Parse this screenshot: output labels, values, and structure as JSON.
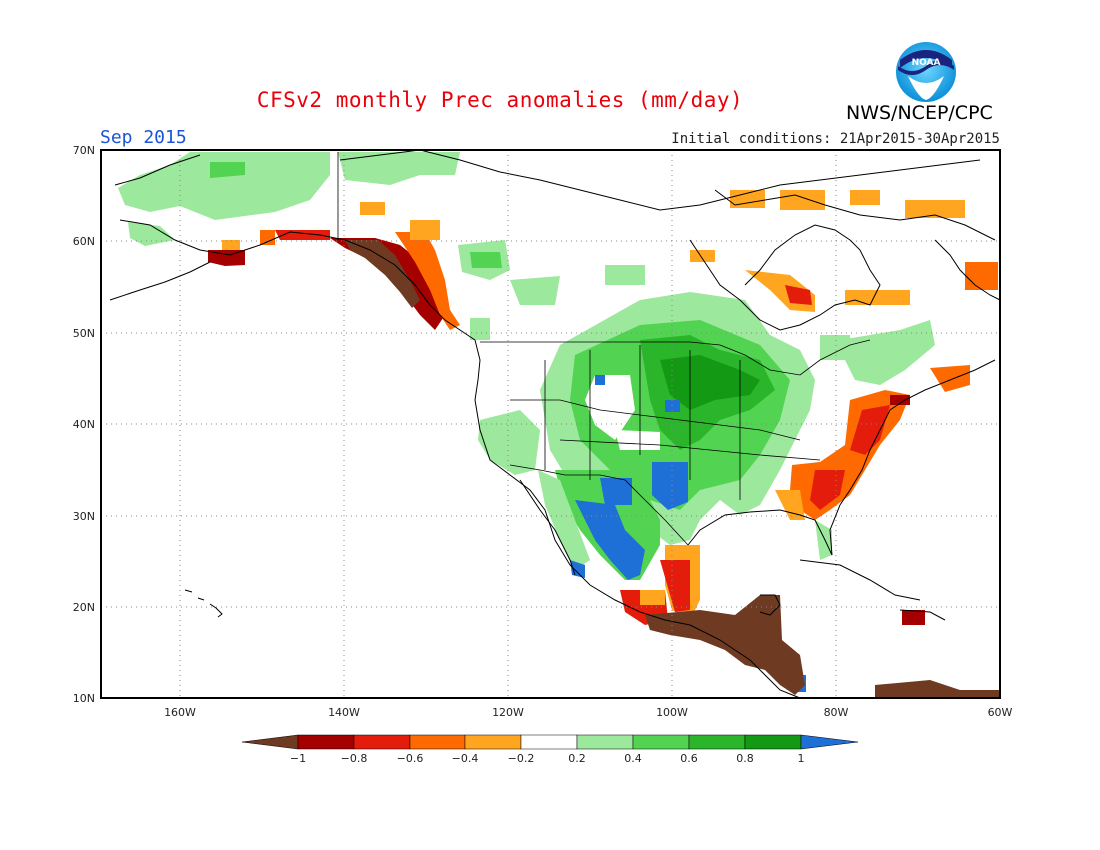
{
  "header": {
    "title": "CFSv2 monthly Prec anomalies (mm/day)",
    "period": "Sep 2015",
    "initial_conditions": "Initial conditions: 21Apr2015-30Apr2015",
    "agency": "NWS/NCEP/CPC",
    "logo_text": "NOAA"
  },
  "axes": {
    "lat_labels": [
      "70N",
      "60N",
      "50N",
      "40N",
      "30N",
      "20N",
      "10N"
    ],
    "lon_labels": [
      "160W",
      "140W",
      "120W",
      "100W",
      "80W",
      "60W"
    ]
  },
  "legend": {
    "tick_labels": [
      "-1",
      "-0.8",
      "-0.6",
      "-0.4",
      "-0.2",
      "0.2",
      "0.4",
      "0.6",
      "0.8",
      "1"
    ],
    "colors": [
      "#6e3a22",
      "#a40000",
      "#e41c0c",
      "#ff6a00",
      "#ffa51f",
      "#ffffff",
      "#9ce89c",
      "#52d452",
      "#2bb52b",
      "#139913",
      "#1e6fd6"
    ]
  },
  "colors": {
    "title": "#e8000b",
    "period": "#1b54d6",
    "coast": "#000000",
    "grid": "#888888"
  }
}
